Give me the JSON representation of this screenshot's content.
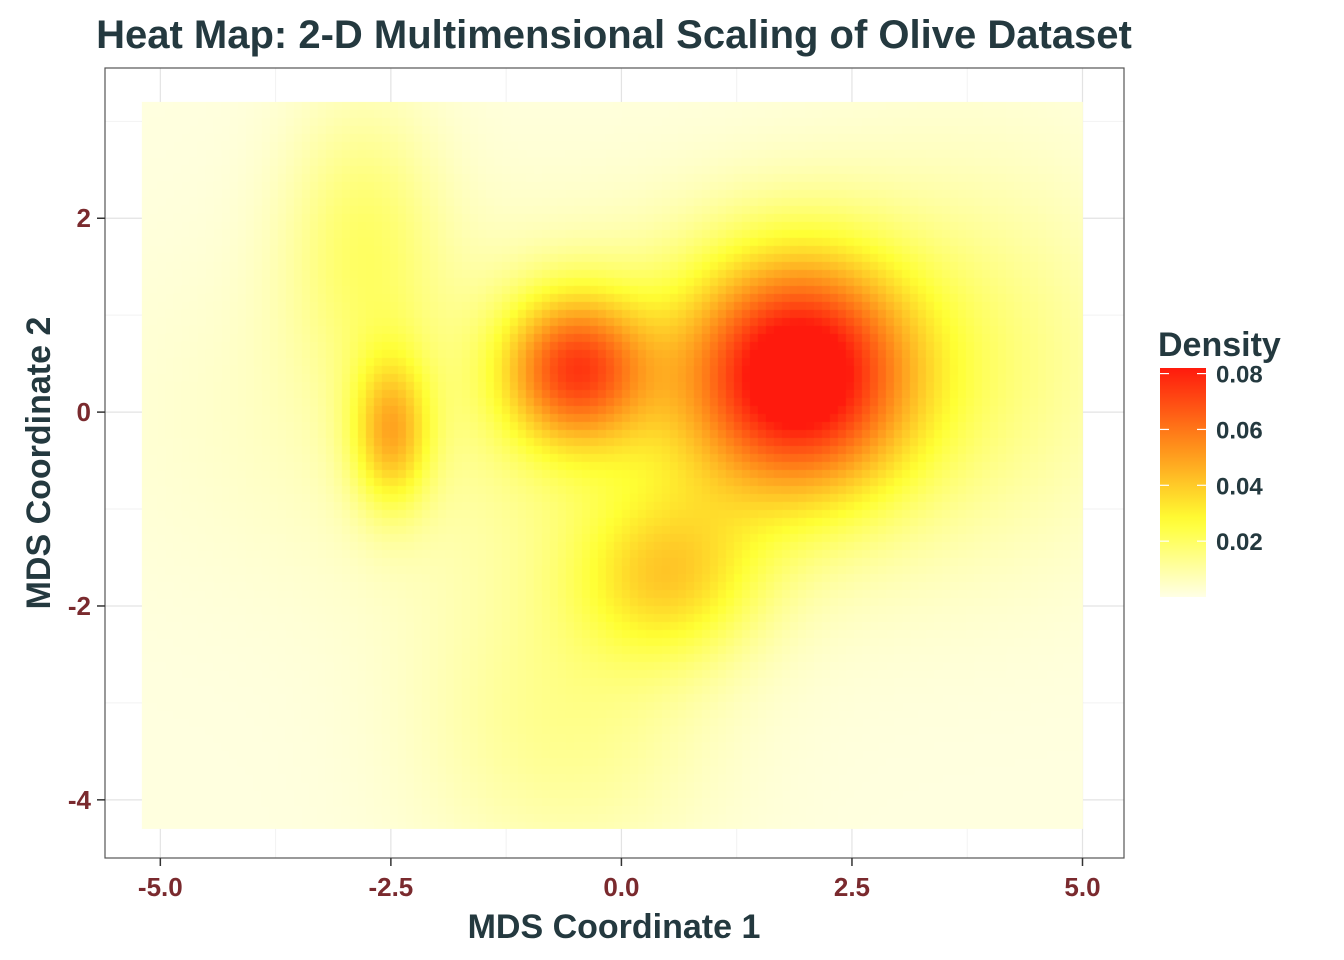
{
  "chart_data": {
    "type": "heatmap",
    "title": "Heat Map: 2-D Multimensional Scaling of Olive Dataset",
    "xlabel": "MDS Coordinate 1",
    "ylabel": "MDS Coordinate 2",
    "xlim": [
      -5.6,
      5.45
    ],
    "ylim": [
      -4.6,
      3.55
    ],
    "data_extent": {
      "x": [
        -5.2,
        5.0
      ],
      "y": [
        -4.3,
        3.2
      ]
    },
    "x_ticks": [
      {
        "value": -5.0,
        "label": "-5.0"
      },
      {
        "value": -2.5,
        "label": "-2.5"
      },
      {
        "value": 0.0,
        "label": "0.0"
      },
      {
        "value": 2.5,
        "label": "2.5"
      },
      {
        "value": 5.0,
        "label": "5.0"
      }
    ],
    "y_ticks": [
      {
        "value": 2,
        "label": "2"
      },
      {
        "value": 0,
        "label": "0"
      },
      {
        "value": -2,
        "label": "-2"
      },
      {
        "value": -4,
        "label": "-4"
      }
    ],
    "grid": true,
    "legend": {
      "title": "Density",
      "placement": "right",
      "min": 0.0,
      "max": 0.082,
      "ticks": [
        {
          "value": 0.08,
          "label": "0.08"
        },
        {
          "value": 0.06,
          "label": "0.06"
        },
        {
          "value": 0.04,
          "label": "0.04"
        },
        {
          "value": 0.02,
          "label": "0.02"
        }
      ],
      "colors": [
        "#ffffe6",
        "#ffff33",
        "#ff8c1a",
        "#ff1a0d"
      ]
    },
    "density_components": [
      {
        "x": 1.9,
        "y": 0.4,
        "sx": 0.85,
        "sy": 0.85,
        "peak": 0.082
      },
      {
        "x": -0.5,
        "y": 0.45,
        "sx": 0.55,
        "sy": 0.55,
        "peak": 0.06
      },
      {
        "x": -2.5,
        "y": -0.2,
        "sx": 0.3,
        "sy": 0.55,
        "peak": 0.038
      },
      {
        "x": -2.8,
        "y": 1.8,
        "sx": 0.6,
        "sy": 1.0,
        "peak": 0.016
      },
      {
        "x": 0.5,
        "y": -1.7,
        "sx": 0.7,
        "sy": 0.6,
        "peak": 0.03
      },
      {
        "x": -0.6,
        "y": -3.2,
        "sx": 1.1,
        "sy": 1.1,
        "peak": 0.012
      },
      {
        "x": 0.4,
        "y": 0.0,
        "sx": 2.8,
        "sy": 1.3,
        "peak": 0.014
      },
      {
        "x": 3.8,
        "y": 0.8,
        "sx": 1.2,
        "sy": 1.3,
        "peak": 0.01
      }
    ]
  }
}
